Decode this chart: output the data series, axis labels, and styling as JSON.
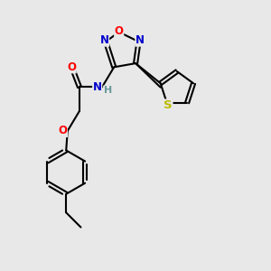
{
  "bg_color": "#e8e8e8",
  "bond_color": "#000000",
  "bond_width": 1.5,
  "atom_colors": {
    "O": "#ff0000",
    "N": "#0000cc",
    "S": "#bbbb00",
    "C": "#000000",
    "H": "#6a9a9a"
  },
  "font_size": 8.5,
  "fig_size": [
    3.0,
    3.0
  ],
  "dpi": 100,
  "xlim": [
    0,
    10
  ],
  "ylim": [
    0,
    10
  ]
}
